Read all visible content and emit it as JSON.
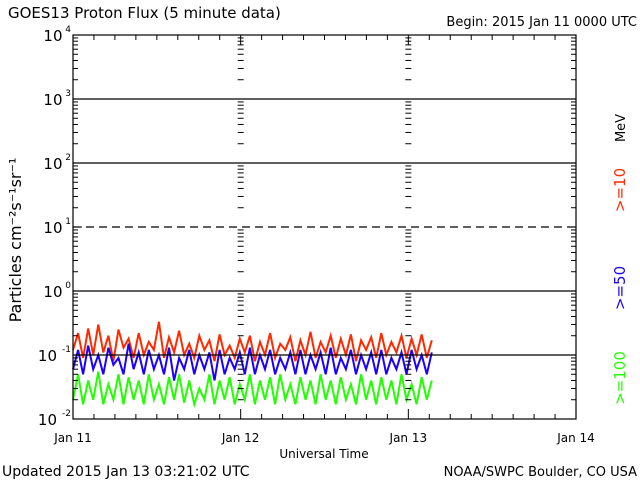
{
  "chart_data": {
    "type": "line",
    "title": "GOES13 Proton Flux (5 minute data)",
    "begin_label": "Begin: 2015 Jan 11 0000 UTC",
    "xlabel": "Universal Time",
    "ylabel": "Particles cm⁻²s⁻¹sr⁻¹",
    "units_label": "MeV",
    "xlim_days": [
      0,
      3
    ],
    "x_ticks": [
      {
        "day": 0,
        "label": "Jan 11"
      },
      {
        "day": 1,
        "label": "Jan 12"
      },
      {
        "day": 2,
        "label": "Jan 13"
      },
      {
        "day": 3,
        "label": "Jan 14"
      }
    ],
    "ylim_log10": [
      -2,
      4
    ],
    "y_ticks": [
      {
        "exp": 4,
        "base": "10",
        "sup": "4"
      },
      {
        "exp": 3,
        "base": "10",
        "sup": "3"
      },
      {
        "exp": 2,
        "base": "10",
        "sup": "2"
      },
      {
        "exp": 1,
        "base": "10",
        "sup": "1"
      },
      {
        "exp": 0,
        "base": "10",
        "sup": "0"
      },
      {
        "exp": -1,
        "base": "10",
        "sup": "-1"
      },
      {
        "exp": -2,
        "base": "10",
        "sup": "-2"
      }
    ],
    "threshold_lines": [
      {
        "exp": 3,
        "style": "solid"
      },
      {
        "exp": 2,
        "style": "solid"
      },
      {
        "exp": 1,
        "style": "dashed"
      },
      {
        "exp": 0,
        "style": "solid"
      },
      {
        "exp": -1,
        "style": "solid"
      }
    ],
    "data_end_day": 2.14,
    "series": [
      {
        "name": ">=10",
        "color": "#ff2a00",
        "values": [
          0.12,
          0.22,
          0.09,
          0.26,
          0.1,
          0.3,
          0.11,
          0.2,
          0.08,
          0.25,
          0.13,
          0.18,
          0.09,
          0.22,
          0.1,
          0.16,
          0.12,
          0.33,
          0.09,
          0.19,
          0.11,
          0.24,
          0.1,
          0.15,
          0.09,
          0.2,
          0.12,
          0.17,
          0.08,
          0.21,
          0.1,
          0.14,
          0.09,
          0.18,
          0.11,
          0.2,
          0.08,
          0.16,
          0.1,
          0.22,
          0.09,
          0.15,
          0.12,
          0.19,
          0.08,
          0.17,
          0.1,
          0.23,
          0.09,
          0.16,
          0.11,
          0.2,
          0.09,
          0.18,
          0.1,
          0.21,
          0.08,
          0.17,
          0.12,
          0.19,
          0.09,
          0.22,
          0.1,
          0.16,
          0.11,
          0.2,
          0.09,
          0.18,
          0.1,
          0.21,
          0.09,
          0.17
        ]
      },
      {
        "name": ">=50",
        "color": "#1a00ff",
        "values": [
          0.06,
          0.12,
          0.05,
          0.14,
          0.06,
          0.1,
          0.05,
          0.13,
          0.07,
          0.09,
          0.05,
          0.15,
          0.06,
          0.11,
          0.05,
          0.12,
          0.06,
          0.1,
          0.05,
          0.13,
          0.04,
          0.09,
          0.06,
          0.12,
          0.05,
          0.1,
          0.06,
          0.11,
          0.04,
          0.12,
          0.05,
          0.09,
          0.06,
          0.11,
          0.05,
          0.13,
          0.05,
          0.1,
          0.06,
          0.12,
          0.05,
          0.09,
          0.06,
          0.11,
          0.05,
          0.12,
          0.05,
          0.1,
          0.06,
          0.11,
          0.05,
          0.13,
          0.05,
          0.09,
          0.06,
          0.12,
          0.05,
          0.1,
          0.06,
          0.11,
          0.05,
          0.12,
          0.05,
          0.09,
          0.06,
          0.11,
          0.05,
          0.12,
          0.06,
          0.1,
          0.05,
          0.11
        ]
      },
      {
        "name": ">=100",
        "color": "#22ff00",
        "values": [
          0.02,
          0.05,
          0.017,
          0.04,
          0.02,
          0.055,
          0.017,
          0.035,
          0.02,
          0.05,
          0.017,
          0.045,
          0.02,
          0.04,
          0.017,
          0.05,
          0.02,
          0.035,
          0.017,
          0.045,
          0.02,
          0.05,
          0.018,
          0.04,
          0.017,
          0.03,
          0.02,
          0.05,
          0.017,
          0.04,
          0.02,
          0.045,
          0.017,
          0.035,
          0.02,
          0.05,
          0.017,
          0.04,
          0.02,
          0.045,
          0.017,
          0.05,
          0.02,
          0.035,
          0.017,
          0.045,
          0.02,
          0.04,
          0.017,
          0.05,
          0.02,
          0.04,
          0.017,
          0.045,
          0.02,
          0.035,
          0.017,
          0.05,
          0.02,
          0.04,
          0.017,
          0.045,
          0.02,
          0.04,
          0.017,
          0.05,
          0.02,
          0.035,
          0.017,
          0.045,
          0.02,
          0.04
        ]
      }
    ]
  },
  "footer": {
    "updated": "Updated 2015 Jan 13 03:21:02 UTC",
    "credit": "NOAA/SWPC Boulder, CO USA"
  }
}
